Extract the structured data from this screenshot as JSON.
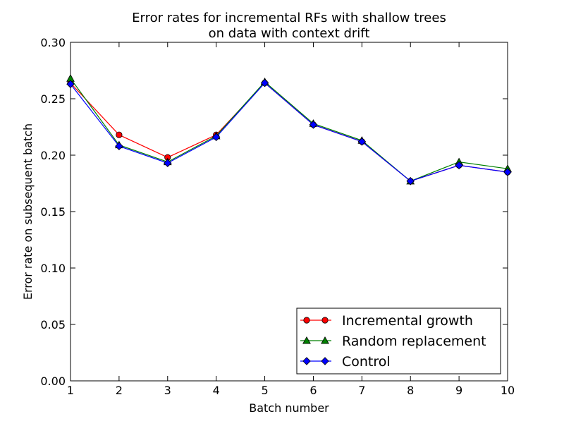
{
  "chart_data": {
    "type": "line",
    "title_line1": "Error rates for incremental RFs with shallow trees",
    "title_line2": "on data with context drift",
    "xlabel": "Batch number",
    "ylabel": "Error rate on subsequent batch",
    "x": [
      1,
      2,
      3,
      4,
      5,
      6,
      7,
      8,
      9,
      10
    ],
    "xlim": [
      1,
      10
    ],
    "ylim": [
      0.0,
      0.3
    ],
    "xticks": [
      "1",
      "2",
      "3",
      "4",
      "5",
      "6",
      "7",
      "8",
      "9",
      "10"
    ],
    "yticks": [
      "0.00",
      "0.05",
      "0.10",
      "0.15",
      "0.20",
      "0.25",
      "0.30"
    ],
    "grid": false,
    "legend_position": "lower-right",
    "series": [
      {
        "name": "Incremental growth",
        "color": "#ff0000",
        "marker": "circle",
        "values": [
          0.264,
          0.218,
          0.198,
          0.218,
          0.264,
          0.227,
          0.212,
          0.177,
          0.191,
          0.185
        ]
      },
      {
        "name": "Random replacement",
        "color": "#008000",
        "marker": "triangle",
        "values": [
          0.268,
          0.209,
          0.194,
          0.217,
          0.265,
          0.228,
          0.213,
          0.177,
          0.194,
          0.188
        ]
      },
      {
        "name": "Control",
        "color": "#0000ff",
        "marker": "diamond",
        "values": [
          0.263,
          0.208,
          0.193,
          0.216,
          0.264,
          0.227,
          0.212,
          0.177,
          0.191,
          0.185
        ]
      }
    ]
  }
}
